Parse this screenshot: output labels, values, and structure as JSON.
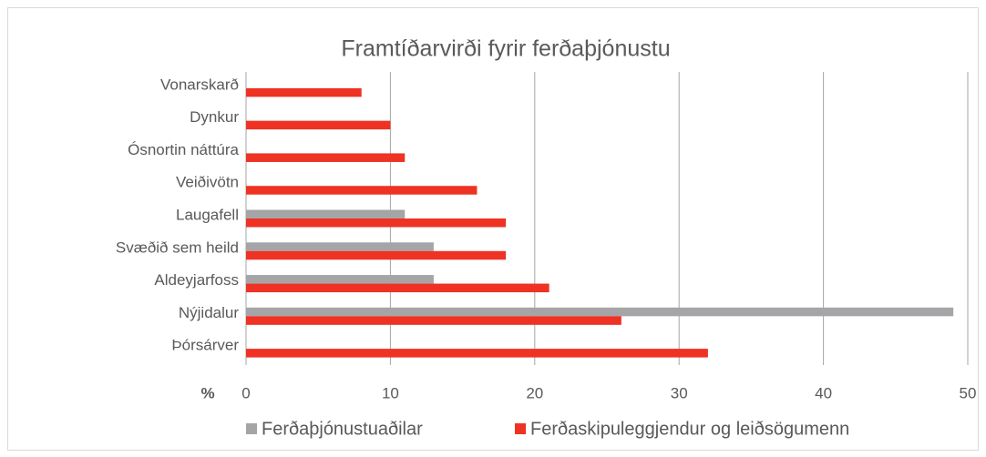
{
  "chart_data": {
    "type": "hbar",
    "title": "Framtíðarvirði fyrir ferðaþjónustu",
    "xlabel": "%",
    "categories": [
      "Vonarskarð",
      "Dynkur",
      "Ósnortin náttúra",
      "Veiðivötn",
      "Laugafell",
      "Svæðið sem heild",
      "Aldeyjarfoss",
      "Nýjidalur",
      "Þórsárver"
    ],
    "series": [
      {
        "name": "Ferðaþjónustuaðilar",
        "color": "#a5a5a7",
        "values": [
          null,
          null,
          null,
          null,
          11,
          13,
          13,
          49,
          null
        ]
      },
      {
        "name": "Ferðaskipuleggjendur og leiðsögumenn",
        "color": "#ee3224",
        "values": [
          8,
          10,
          11,
          16,
          18,
          18,
          21,
          26,
          32
        ]
      }
    ],
    "xlim": [
      0,
      50
    ],
    "xticks": [
      0,
      10,
      20,
      30,
      40,
      50
    ],
    "grid": true,
    "legend": "bottom"
  }
}
